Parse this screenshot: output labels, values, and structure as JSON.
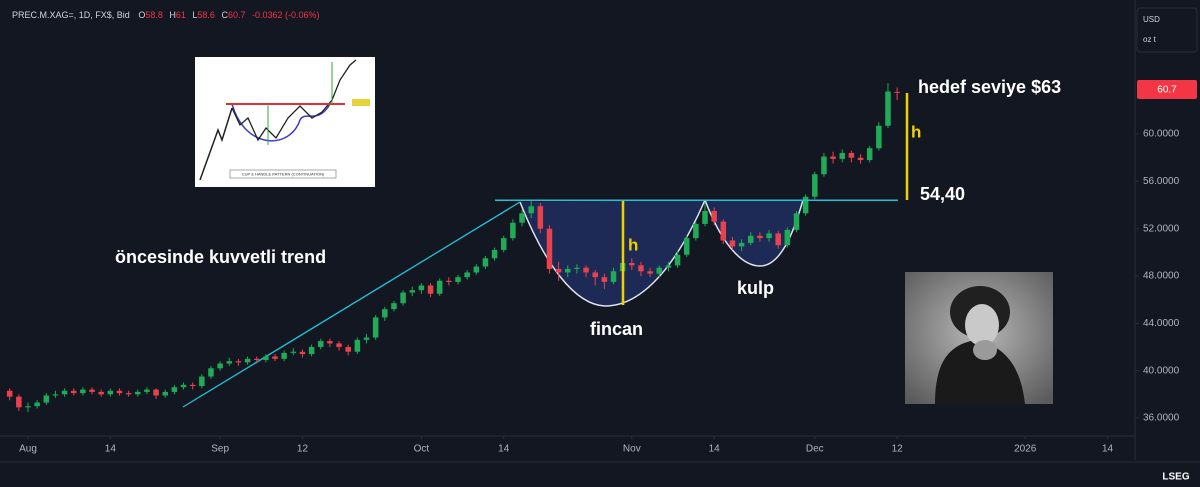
{
  "chart_data": {
    "type": "candlestick",
    "header": "PREC.M.XAG=, 1D, FX$, Bid",
    "ohlc_labels": [
      "O",
      "H",
      "L",
      "C"
    ],
    "change_label": "-0.0362 (-0.06%)",
    "currency": "USD",
    "unit": "oz t",
    "brand": "LSEG",
    "up_color": "#1fab57",
    "down_color": "#e8424e",
    "resistance": 54.4,
    "annotations": {
      "trend": "öncesinde kuvvetli trend",
      "cup": "fincan",
      "handle": "kulp",
      "h": "h",
      "target": "hedef seviye $63",
      "level": "54,40"
    },
    "inset_caption": "CUP & HANDLE PATTERN (CONTINUATION)",
    "xlim": [
      -3.06,
      121
    ],
    "ylim": [
      34.56,
      71.33
    ],
    "xticks": [
      {
        "value": 0,
        "label": "Aug"
      },
      {
        "value": 9,
        "label": "14"
      },
      {
        "value": 21,
        "label": "Sep"
      },
      {
        "value": 30,
        "label": "12"
      },
      {
        "value": 43,
        "label": "Oct"
      },
      {
        "value": 52,
        "label": "14"
      },
      {
        "value": 66,
        "label": "Nov"
      },
      {
        "value": 75,
        "label": "14"
      },
      {
        "value": 86,
        "label": "Dec"
      },
      {
        "value": 95,
        "label": "12"
      },
      {
        "value": 109,
        "label": "2026"
      },
      {
        "value": 118,
        "label": "14"
      }
    ],
    "yticks": [
      {
        "value": 36,
        "label": "36.0000"
      },
      {
        "value": 40,
        "label": "40.0000"
      },
      {
        "value": 44,
        "label": "44.0000"
      },
      {
        "value": 48,
        "label": "48.0000"
      },
      {
        "value": 52,
        "label": "52.0000"
      },
      {
        "value": 56,
        "label": "56.0000"
      },
      {
        "value": 60,
        "label": "60.0000"
      }
    ],
    "x": [
      -2,
      -1,
      0,
      1,
      2,
      3,
      4,
      5,
      6,
      7,
      8,
      9,
      10,
      11,
      12,
      13,
      14,
      15,
      16,
      17,
      18,
      19,
      20,
      21,
      22,
      23,
      24,
      25,
      26,
      27,
      28,
      29,
      30,
      31,
      32,
      33,
      34,
      35,
      36,
      37,
      38,
      39,
      40,
      41,
      42,
      43,
      44,
      45,
      46,
      47,
      48,
      49,
      50,
      51,
      52,
      53,
      54,
      55,
      56,
      57,
      58,
      59,
      60,
      61,
      62,
      63,
      64,
      65,
      66,
      67,
      68,
      69,
      70,
      71,
      72,
      73,
      74,
      75,
      76,
      77,
      78,
      79,
      80,
      81,
      82,
      83,
      84,
      85,
      86,
      87,
      88,
      89,
      90,
      91,
      92,
      93,
      94,
      95
    ],
    "ohlc": [
      [
        38.3,
        38.5,
        37.5,
        37.8
      ],
      [
        37.8,
        38.0,
        36.6,
        36.9
      ],
      [
        36.9,
        37.3,
        36.5,
        37.0
      ],
      [
        37.0,
        37.5,
        36.8,
        37.3
      ],
      [
        37.3,
        38.1,
        37.1,
        37.9
      ],
      [
        37.9,
        38.3,
        37.7,
        38.0
      ],
      [
        38.0,
        38.5,
        37.8,
        38.3
      ],
      [
        38.3,
        38.5,
        37.9,
        38.1
      ],
      [
        38.1,
        38.6,
        37.9,
        38.4
      ],
      [
        38.4,
        38.6,
        38.0,
        38.2
      ],
      [
        38.2,
        38.4,
        37.8,
        38.0
      ],
      [
        38.0,
        38.5,
        37.8,
        38.3
      ],
      [
        38.3,
        38.5,
        37.9,
        38.1
      ],
      [
        38.1,
        38.3,
        37.8,
        38.0
      ],
      [
        38.0,
        38.4,
        37.8,
        38.2
      ],
      [
        38.2,
        38.6,
        38.0,
        38.4
      ],
      [
        38.4,
        38.5,
        37.6,
        37.9
      ],
      [
        37.9,
        38.4,
        37.7,
        38.2
      ],
      [
        38.2,
        38.8,
        38.0,
        38.6
      ],
      [
        38.6,
        39.0,
        38.4,
        38.8
      ],
      [
        38.8,
        39.0,
        38.4,
        38.7
      ],
      [
        38.7,
        39.7,
        38.5,
        39.5
      ],
      [
        39.5,
        40.4,
        39.3,
        40.2
      ],
      [
        40.2,
        40.8,
        40.0,
        40.6
      ],
      [
        40.6,
        41.1,
        40.4,
        40.8
      ],
      [
        40.8,
        41.0,
        40.4,
        40.7
      ],
      [
        40.7,
        41.2,
        40.5,
        41.0
      ],
      [
        41.0,
        41.2,
        40.6,
        40.9
      ],
      [
        40.9,
        41.4,
        40.7,
        41.2
      ],
      [
        41.2,
        41.4,
        40.8,
        41.0
      ],
      [
        41.0,
        41.7,
        40.8,
        41.5
      ],
      [
        41.5,
        41.9,
        41.3,
        41.6
      ],
      [
        41.6,
        41.8,
        41.1,
        41.4
      ],
      [
        41.4,
        42.2,
        41.2,
        42.0
      ],
      [
        42.0,
        42.7,
        41.8,
        42.5
      ],
      [
        42.5,
        42.7,
        42.0,
        42.3
      ],
      [
        42.3,
        42.5,
        41.7,
        42.0
      ],
      [
        42.0,
        42.2,
        41.3,
        41.6
      ],
      [
        41.6,
        42.8,
        41.4,
        42.6
      ],
      [
        42.6,
        43.1,
        42.3,
        42.8
      ],
      [
        42.8,
        44.7,
        42.6,
        44.5
      ],
      [
        44.5,
        45.4,
        44.2,
        45.2
      ],
      [
        45.2,
        45.9,
        45.0,
        45.7
      ],
      [
        45.7,
        46.8,
        45.5,
        46.6
      ],
      [
        46.6,
        47.1,
        46.3,
        46.8
      ],
      [
        46.8,
        47.4,
        46.5,
        47.2
      ],
      [
        47.2,
        47.4,
        46.2,
        46.5
      ],
      [
        46.5,
        47.8,
        46.3,
        47.6
      ],
      [
        47.6,
        47.9,
        47.2,
        47.5
      ],
      [
        47.5,
        48.1,
        47.3,
        47.9
      ],
      [
        47.9,
        48.5,
        47.7,
        48.3
      ],
      [
        48.3,
        49.0,
        48.1,
        48.8
      ],
      [
        48.8,
        49.7,
        48.6,
        49.5
      ],
      [
        49.5,
        50.4,
        49.3,
        50.2
      ],
      [
        50.2,
        51.4,
        50.0,
        51.2
      ],
      [
        51.2,
        52.8,
        51.0,
        52.5
      ],
      [
        52.5,
        53.6,
        52.2,
        53.3
      ],
      [
        53.3,
        54.4,
        52.9,
        53.9
      ],
      [
        53.9,
        54.2,
        51.6,
        52.0
      ],
      [
        52.0,
        52.3,
        48.2,
        48.6
      ],
      [
        48.6,
        49.2,
        47.6,
        48.3
      ],
      [
        48.3,
        48.9,
        47.9,
        48.6
      ],
      [
        48.6,
        49.0,
        48.2,
        48.7
      ],
      [
        48.7,
        48.9,
        47.9,
        48.3
      ],
      [
        48.3,
        48.5,
        47.2,
        47.9
      ],
      [
        47.9,
        48.2,
        46.9,
        47.5
      ],
      [
        47.5,
        48.7,
        47.3,
        48.4
      ],
      [
        48.4,
        49.4,
        48.1,
        49.1
      ],
      [
        49.1,
        49.5,
        48.5,
        48.9
      ],
      [
        48.9,
        49.2,
        48.0,
        48.4
      ],
      [
        48.4,
        48.7,
        47.9,
        48.2
      ],
      [
        48.2,
        48.9,
        47.9,
        48.7
      ],
      [
        48.7,
        49.2,
        48.4,
        48.9
      ],
      [
        48.9,
        50.1,
        48.7,
        49.8
      ],
      [
        49.8,
        51.4,
        49.6,
        51.2
      ],
      [
        51.2,
        52.6,
        51.0,
        52.4
      ],
      [
        52.4,
        54.2,
        52.2,
        53.5
      ],
      [
        53.5,
        53.8,
        52.3,
        52.6
      ],
      [
        52.6,
        52.8,
        50.7,
        51.0
      ],
      [
        51.0,
        51.3,
        50.2,
        50.5
      ],
      [
        50.5,
        51.1,
        50.1,
        50.8
      ],
      [
        50.8,
        51.7,
        50.6,
        51.4
      ],
      [
        51.4,
        51.7,
        50.9,
        51.2
      ],
      [
        51.2,
        51.9,
        50.9,
        51.6
      ],
      [
        51.6,
        51.8,
        50.3,
        50.6
      ],
      [
        50.6,
        52.1,
        50.4,
        51.9
      ],
      [
        51.9,
        53.5,
        51.7,
        53.3
      ],
      [
        53.3,
        54.9,
        53.1,
        54.7
      ],
      [
        54.7,
        56.8,
        54.5,
        56.6
      ],
      [
        56.6,
        58.4,
        56.4,
        58.1
      ],
      [
        58.1,
        58.5,
        57.5,
        57.9
      ],
      [
        57.9,
        58.7,
        57.6,
        58.4
      ],
      [
        58.4,
        58.6,
        57.6,
        58.0
      ],
      [
        58.0,
        58.3,
        57.5,
        57.8
      ],
      [
        57.8,
        59.0,
        57.6,
        58.8
      ],
      [
        58.8,
        61.0,
        58.6,
        60.7
      ],
      [
        60.7,
        64.3,
        60.5,
        63.6
      ],
      [
        63.5657,
        63.9265,
        62.875,
        63.5296
      ]
    ]
  }
}
